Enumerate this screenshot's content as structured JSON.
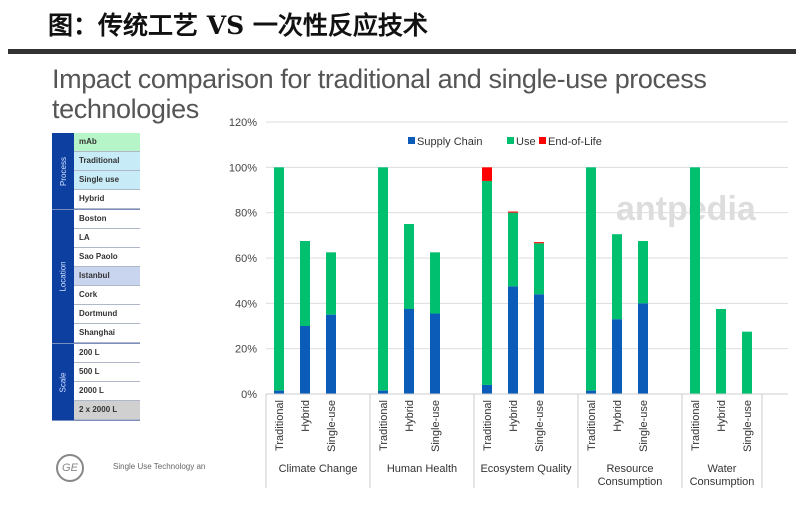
{
  "header": {
    "title": "图：传统工艺 VS 一次性反应技术"
  },
  "slide": {
    "title": "Impact comparison for traditional and single-use process technologies",
    "footer": "Single Use Technology an",
    "logo": "GE",
    "watermark": "antpedia"
  },
  "table": {
    "sections": [
      {
        "label": "Process",
        "rows": [
          {
            "text": "mAb",
            "color": "#b5f5c8"
          },
          {
            "text": "Traditional",
            "color": "#c7ecf8"
          },
          {
            "text": "Single use",
            "color": "#c7ecf8"
          },
          {
            "text": "Hybrid",
            "color": "#ffffff"
          }
        ]
      },
      {
        "label": "Location",
        "rows": [
          {
            "text": "Boston",
            "color": "#ffffff"
          },
          {
            "text": "LA",
            "color": "#ffffff"
          },
          {
            "text": "Sao Paolo",
            "color": "#ffffff"
          },
          {
            "text": "Istanbul",
            "color": "#c9d5ee"
          },
          {
            "text": "Cork",
            "color": "#ffffff"
          },
          {
            "text": "Dortmund",
            "color": "#ffffff"
          },
          {
            "text": "Shanghai",
            "color": "#ffffff"
          }
        ]
      },
      {
        "label": "Scale",
        "rows": [
          {
            "text": "200 L",
            "color": "#ffffff"
          },
          {
            "text": "500 L",
            "color": "#ffffff"
          },
          {
            "text": "2000 L",
            "color": "#ffffff"
          },
          {
            "text": "2 x 2000 L",
            "color": "#d0d0d0"
          }
        ]
      }
    ]
  },
  "chart_data": {
    "type": "bar",
    "stacked": true,
    "ylim": [
      0,
      120
    ],
    "yticks": [
      "0%",
      "20%",
      "40%",
      "60%",
      "80%",
      "100%",
      "120%"
    ],
    "grid": true,
    "legend": "top",
    "groups": [
      "Climate Change",
      "Human Health",
      "Ecosystem Quality",
      "Resource Consumption",
      "Water Consumption"
    ],
    "categories": [
      "Traditional",
      "Hybrid",
      "Single-use"
    ],
    "series": [
      {
        "name": "Supply Chain",
        "color": "#0b5cb8",
        "values": [
          [
            1.5,
            30,
            35
          ],
          [
            1.5,
            37.5,
            35.5
          ],
          [
            4,
            47.5,
            44
          ],
          [
            1.5,
            33,
            40
          ],
          [
            0,
            0,
            0
          ]
        ]
      },
      {
        "name": "Use",
        "color": "#00bf6f",
        "values": [
          [
            98.5,
            37.5,
            27.5
          ],
          [
            98.5,
            37.5,
            27
          ],
          [
            90,
            32.5,
            22.5
          ],
          [
            98.5,
            37.5,
            27.5
          ],
          [
            100,
            37.5,
            27.5
          ]
        ]
      },
      {
        "name": "End-of-Life",
        "color": "#ff0000",
        "values": [
          [
            0,
            0,
            0
          ],
          [
            0,
            0,
            0
          ],
          [
            6,
            0.5,
            0.5
          ],
          [
            0,
            0,
            0
          ],
          [
            0,
            0,
            0
          ]
        ]
      }
    ]
  }
}
